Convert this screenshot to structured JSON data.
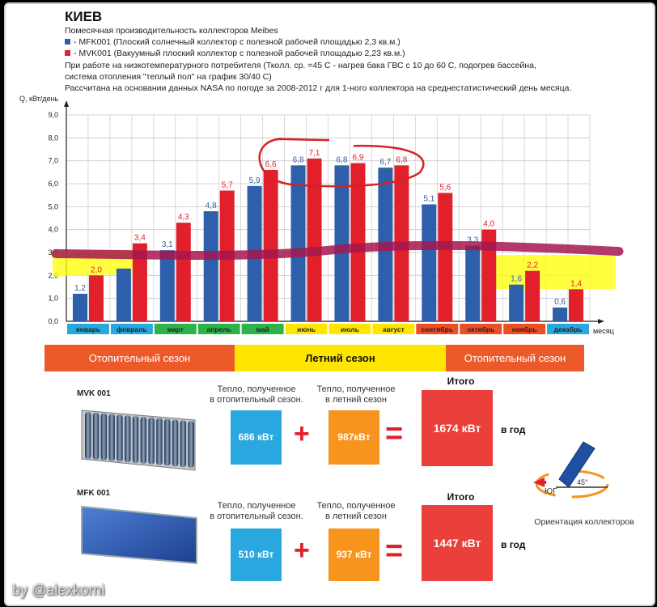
{
  "header": {
    "title": "КИЕВ",
    "subtitle": "Помесячная производительность коллекторов Meibes",
    "legend_mfk": "- MFK001 (Плоский солнечный коллектор с полезной рабочей площадью 2,3 кв.м.)",
    "legend_mvk": "- MVK001 (Вакуумный плоский коллектор с полезной рабочей площадью 2,23 кв.м.)",
    "note1": "При работе на низкотемпературного потребителя (Ткoлл. ср. =45 С - нагрев бака ГВС с 10 до 60 С, подогрев бассейна,",
    "note2": "система отопления \"теплый пол\" на график 30/40 С)",
    "note3": "Рассчитана на основании данных NASA по погоде за 2008-2012 г для 1-ного коллектора на среднестатистический день месяца."
  },
  "chart_data": {
    "type": "bar",
    "ylabel": "Q, кВт/день",
    "xlabel": "месяц",
    "ylim": [
      0,
      9
    ],
    "yticks": [
      "0,0",
      "1,0",
      "2,0",
      "3,0",
      "4,0",
      "5,0",
      "6,0",
      "7,0",
      "8,0",
      "9,0"
    ],
    "grid": true,
    "categories": [
      "январь",
      "февраль",
      "март",
      "апрель",
      "май",
      "июнь",
      "июль",
      "август",
      "сентябрь",
      "октябрь",
      "ноябрь",
      "декабрь"
    ],
    "category_colors": [
      "#29a7df",
      "#29a7df",
      "#2db34a",
      "#2db34a",
      "#2db34a",
      "#ffe600",
      "#ffe600",
      "#ffe600",
      "#ec4e28",
      "#ec4e28",
      "#ec4e28",
      "#29a7df"
    ],
    "series": [
      {
        "name": "MFK001",
        "color": "#2e5faa",
        "values": [
          1.2,
          2.3,
          3.1,
          4.8,
          5.9,
          6.8,
          6.8,
          6.7,
          5.1,
          3.3,
          1.6,
          0.6
        ],
        "labels": [
          "1,2",
          "",
          "3,1",
          "4,8",
          "5,9",
          "6,8",
          "6,8",
          "6,7",
          "5,1",
          "3,3",
          "1,6",
          "0,6"
        ]
      },
      {
        "name": "MVK001",
        "color": "#e2202c",
        "values": [
          2.0,
          3.4,
          4.3,
          5.7,
          6.6,
          7.1,
          6.9,
          6.8,
          5.6,
          4.0,
          2.2,
          1.4
        ],
        "labels": [
          "2,0",
          "3,4",
          "4,3",
          "5,7",
          "6,6",
          "7,1",
          "6,9",
          "6,8",
          "5,6",
          "4,0",
          "2,2",
          "1,4"
        ]
      }
    ],
    "annotations": [
      "horizontal hand-drawn line near 3,0",
      "red hand-drawn ellipse around June-August",
      "yellow highlights on low months"
    ]
  },
  "seasons": [
    {
      "label": "Отопительный сезон",
      "color": "#ed5a29"
    },
    {
      "label": "Летний сезон",
      "color": "#ffe600"
    },
    {
      "label": "Отопительный сезон",
      "color": "#ed5a29"
    }
  ],
  "mvk": {
    "model": "MVK 001",
    "heating_caption": "Тепло, полученное\nв отопительный сезон.",
    "summer_caption": "Тепло, полученное\nв летний сезон",
    "total_caption": "Итого",
    "heating_value": "686 кВт",
    "summer_value": "987кВт",
    "total_value": "1674 кВт",
    "per_year": "в год"
  },
  "mfk": {
    "model": "MFK 001",
    "heating_caption": "Тепло, полученное\nв отопительный сезон.",
    "summer_caption": "Тепло, полученное\nв летний сезон",
    "total_caption": "Итого",
    "heating_value": "510 кВт",
    "summer_value": "937 кВт",
    "total_value": "1447 кВт",
    "per_year": "в год"
  },
  "orientation": {
    "south_label": "ЮГ",
    "angle_label": "45°",
    "caption": "Ориентация коллекторов"
  },
  "operators": {
    "plus": "+",
    "equals": "="
  },
  "watermark": "by @alexkorni",
  "colors": {
    "heating_box": "#29a7df",
    "summer_box": "#f7941d",
    "total_box": "#ea3f3a"
  }
}
